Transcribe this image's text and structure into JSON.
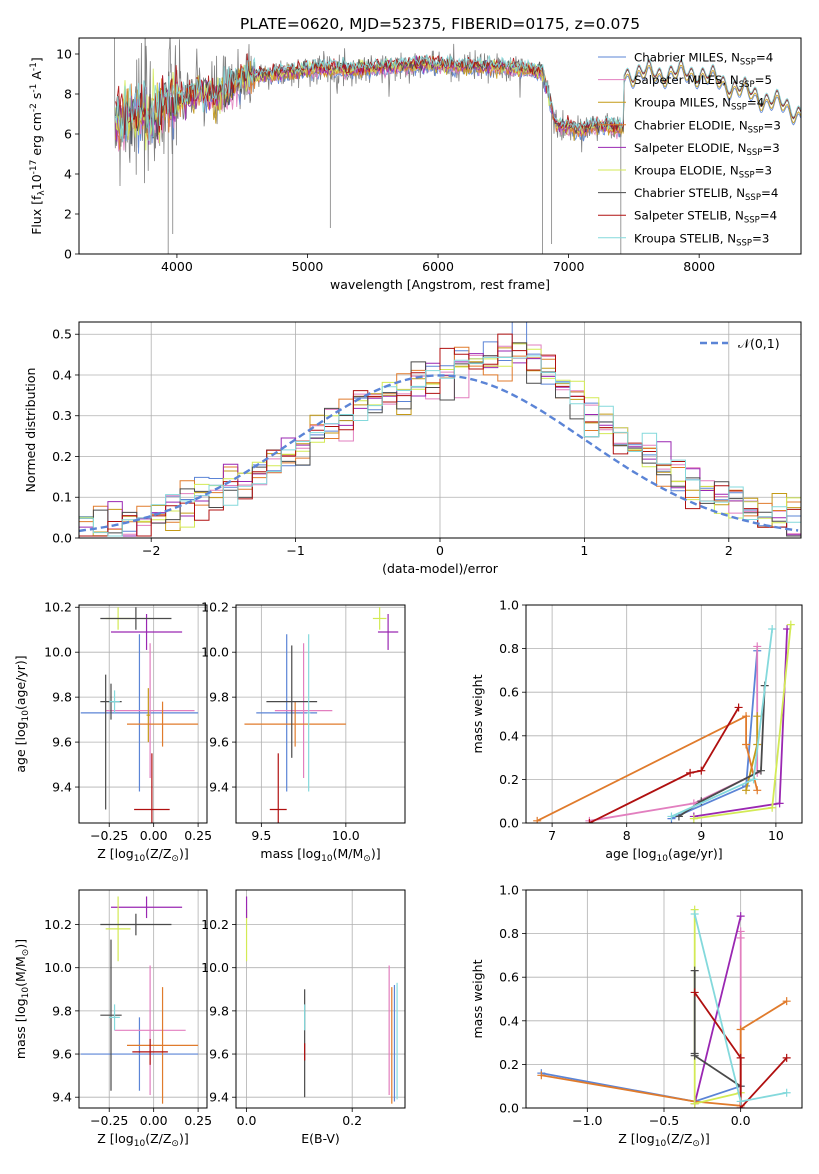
{
  "title": "PLATE=0620, MJD=52375, FIBERID=0175, z=0.075",
  "colors": {
    "Chabrier MILES": "#5b84d6",
    "Salpeter MILES": "#e27fbf",
    "Kroupa MILES": "#c49a17",
    "Chabrier ELODIE": "#e07b2c",
    "Salpeter ELODIE": "#9a27b2",
    "Kroupa ELODIE": "#d3ea55",
    "Chabrier STELIB": "#4a4a4a",
    "Salpeter STELIB": "#b01010",
    "Kroupa STELIB": "#84d9dc",
    "data": "#808080",
    "gauss": "#5b84d6"
  },
  "chart_data": [
    {
      "id": "spectrum",
      "type": "line",
      "xlabel": "wavelength [Angstrom, rest frame]",
      "ylabel": "Flux [f$_\\lambda$10$^{-17}$ erg cm$^{-2}$ s$^{-1}$ A$^{-1}$]",
      "xlim": [
        3250,
        8780
      ],
      "ylim": [
        0,
        10.8
      ],
      "xticks": [
        4000,
        5000,
        6000,
        7000,
        8000
      ],
      "yticks": [
        0,
        2,
        4,
        6,
        8,
        10
      ],
      "grid": false,
      "legend": "top-right",
      "data_range": [
        3520,
        7420
      ],
      "flux_profile": {
        "x": [
          3520,
          3600,
          3700,
          3800,
          3900,
          4000,
          4100,
          4200,
          4300,
          4400,
          4500,
          4700,
          4900,
          5100,
          5300,
          5500,
          5700,
          5900,
          6100,
          6300,
          6500,
          6700,
          6800,
          6900,
          7000,
          7100,
          7200,
          7300,
          7400
        ],
        "y": [
          6.5,
          6.8,
          7.0,
          6.7,
          7.4,
          7.7,
          8.0,
          8.1,
          7.8,
          8.3,
          8.8,
          9.0,
          9.1,
          9.3,
          9.2,
          9.3,
          9.4,
          9.5,
          9.4,
          9.4,
          9.3,
          9.2,
          9.1,
          6.5,
          6.3,
          6.2,
          6.4,
          6.4,
          6.3
        ]
      },
      "series": [
        {
          "name": "Chabrier MILES, N$_{SSP}$=4",
          "extends_to": 8780
        },
        {
          "name": "Salpeter MILES, N$_{SSP}$=5",
          "extends_to": 7420
        },
        {
          "name": "Kroupa MILES, N$_{SSP}$=4",
          "extends_to": 8780
        },
        {
          "name": "Chabrier ELODIE, N$_{SSP}$=3",
          "extends_to": 7420
        },
        {
          "name": "Salpeter ELODIE, N$_{SSP}$=3",
          "extends_to": 7420
        },
        {
          "name": "Kroupa ELODIE, N$_{SSP}$=3",
          "extends_to": 7420
        },
        {
          "name": "Chabrier STELIB, N$_{SSP}$=4",
          "extends_to": 8780
        },
        {
          "name": "Salpeter STELIB, N$_{SSP}$=4",
          "extends_to": 8780
        },
        {
          "name": "Kroupa STELIB, N$_{SSP}$=3",
          "extends_to": 8780
        }
      ]
    },
    {
      "id": "residuals",
      "type": "bar",
      "xlabel": "(data-model)/error",
      "ylabel": "Normed distribution",
      "xlim": [
        -2.5,
        2.5
      ],
      "ylim": [
        0,
        0.53
      ],
      "xticks": [
        -2,
        -1,
        0,
        1,
        2
      ],
      "yticks": [
        0.0,
        0.1,
        0.2,
        0.3,
        0.4,
        0.5
      ],
      "grid": true,
      "legend": "top-right",
      "legend_label": "$\\mathcal{N}(0,1)$",
      "bin_width": 0.1,
      "histogram": [
        0.02,
        0.03,
        0.03,
        0.04,
        0.05,
        0.06,
        0.07,
        0.08,
        0.09,
        0.11,
        0.13,
        0.14,
        0.16,
        0.18,
        0.2,
        0.22,
        0.25,
        0.28,
        0.3,
        0.32,
        0.34,
        0.35,
        0.36,
        0.37,
        0.39,
        0.41,
        0.42,
        0.43,
        0.44,
        0.45,
        0.46,
        0.44,
        0.4,
        0.37,
        0.34,
        0.31,
        0.28,
        0.25,
        0.22,
        0.2,
        0.18,
        0.16,
        0.14,
        0.12,
        0.1,
        0.09,
        0.07,
        0.06,
        0.05,
        0.04
      ]
    },
    {
      "id": "age_vs_Z",
      "type": "scatter",
      "xlabel": "Z [log$_{10}$(Z/Z$_\\odot$)]",
      "ylabel": "age  [log$_{10}$(age/yr)]",
      "xlim": [
        -0.42,
        0.3
      ],
      "ylim": [
        9.24,
        10.21
      ],
      "xticks": [
        -0.25,
        0.0,
        0.25
      ],
      "yticks": [
        9.4,
        9.6,
        9.8,
        10.0,
        10.2
      ],
      "grid": true,
      "points": [
        {
          "series": "Chabrier MILES",
          "x": -0.08,
          "y": 9.73,
          "xerr": 0.33,
          "yerr": 0.35
        },
        {
          "series": "Salpeter MILES",
          "x": -0.02,
          "y": 9.74,
          "xerr": 0.25,
          "yerr": 0.3
        },
        {
          "series": "Kroupa MILES",
          "x": -0.03,
          "y": 9.72,
          "xerr": 0.01,
          "yerr": 0.12
        },
        {
          "series": "Chabrier ELODIE",
          "x": 0.05,
          "y": 9.68,
          "xerr": 0.2,
          "yerr": 0.1
        },
        {
          "series": "Salpeter ELODIE",
          "x": -0.04,
          "y": 10.09,
          "xerr": 0.2,
          "yerr": 0.08
        },
        {
          "series": "Kroupa ELODIE",
          "x": -0.2,
          "y": 10.15,
          "xerr": 0.07,
          "yerr": 0.05
        },
        {
          "series": "Chabrier STELIB",
          "x": -0.1,
          "y": 10.15,
          "xerr": 0.2,
          "yerr": 0.05
        },
        {
          "series": "Chabrier STELIB",
          "x": -0.24,
          "y": 9.78,
          "xerr": 0.06,
          "yerr": 0.08
        },
        {
          "series": "Salpeter STELIB",
          "x": -0.01,
          "y": 9.3,
          "xerr": 0.1,
          "yerr": 0.25
        },
        {
          "series": "Kroupa STELIB",
          "x": -0.22,
          "y": 9.78,
          "xerr": 0.03,
          "yerr": 0.05
        },
        {
          "series": "Chabrier STELIB",
          "x": -0.27,
          "y": 9.6,
          "xerr": 0.0,
          "yerr": 0.3
        }
      ]
    },
    {
      "id": "age_vs_mass",
      "type": "scatter",
      "xlabel": "mass [log$_{10}$(M/M$_\\odot$)]",
      "ylabel": "",
      "xlim": [
        9.35,
        10.35
      ],
      "ylim": [
        9.24,
        10.21
      ],
      "xticks": [
        9.5,
        10.0
      ],
      "yticks": [
        9.4,
        9.6,
        9.8,
        10.0,
        10.2
      ],
      "grid": true,
      "points": [
        {
          "series": "Chabrier MILES",
          "x": 9.65,
          "y": 9.73,
          "xerr": 0.18,
          "yerr": 0.35
        },
        {
          "series": "Salpeter MILES",
          "x": 9.75,
          "y": 9.74,
          "xerr": 0.17,
          "yerr": 0.3
        },
        {
          "series": "Chabrier ELODIE",
          "x": 9.7,
          "y": 9.68,
          "xerr": 0.3,
          "yerr": 0.1
        },
        {
          "series": "Salpeter ELODIE",
          "x": 10.25,
          "y": 10.09,
          "xerr": 0.06,
          "yerr": 0.08
        },
        {
          "series": "Kroupa ELODIE",
          "x": 10.2,
          "y": 10.15,
          "xerr": 0.04,
          "yerr": 0.05
        },
        {
          "series": "Chabrier STELIB",
          "x": 9.68,
          "y": 9.78,
          "xerr": 0.15,
          "yerr": 0.25
        },
        {
          "series": "Salpeter STELIB",
          "x": 9.6,
          "y": 9.3,
          "xerr": 0.05,
          "yerr": 0.25
        },
        {
          "series": "Kroupa STELIB",
          "x": 9.78,
          "y": 9.73,
          "xerr": 0.01,
          "yerr": 0.35
        }
      ]
    },
    {
      "id": "mass_weight_vs_age",
      "type": "line",
      "xlabel": "age  [log$_{10}$(age/yr)]",
      "ylabel": "mass weight",
      "xlim": [
        6.65,
        10.35
      ],
      "ylim": [
        0,
        1.0
      ],
      "xticks": [
        7,
        8,
        9,
        10
      ],
      "yticks": [
        0.0,
        0.2,
        0.4,
        0.6,
        0.8,
        1.0
      ],
      "grid": true,
      "series": [
        {
          "name": "Chabrier MILES",
          "x": [
            8.6,
            9.6,
            9.75
          ],
          "y": [
            0.02,
            0.17,
            0.79
          ]
        },
        {
          "name": "Salpeter MILES",
          "x": [
            7.5,
            8.9,
            9.75,
            9.75
          ],
          "y": [
            0.01,
            0.09,
            0.23,
            0.81
          ]
        },
        {
          "name": "Kroupa MILES",
          "x": [
            9.6,
            9.75,
            9.75
          ],
          "y": [
            0.15,
            0.36,
            0.49
          ]
        },
        {
          "name": "Chabrier ELODIE",
          "x": [
            6.8,
            9.6,
            9.6,
            9.75
          ],
          "y": [
            0.01,
            0.49,
            0.36,
            0.15
          ]
        },
        {
          "name": "Salpeter ELODIE",
          "x": [
            8.9,
            10.05,
            10.15
          ],
          "y": [
            0.03,
            0.09,
            0.89
          ]
        },
        {
          "name": "Kroupa ELODIE",
          "x": [
            8.9,
            9.95,
            10.2
          ],
          "y": [
            0.02,
            0.07,
            0.91
          ]
        },
        {
          "name": "Chabrier STELIB",
          "x": [
            8.7,
            9.0,
            9.8,
            9.85
          ],
          "y": [
            0.03,
            0.1,
            0.24,
            0.63
          ]
        },
        {
          "name": "Salpeter STELIB",
          "x": [
            7.5,
            8.85,
            9.0,
            9.5
          ],
          "y": [
            0.0,
            0.23,
            0.24,
            0.53
          ]
        },
        {
          "name": "Kroupa STELIB",
          "x": [
            8.6,
            9.7,
            9.95
          ],
          "y": [
            0.03,
            0.2,
            0.89
          ]
        }
      ]
    },
    {
      "id": "mass_vs_Z",
      "type": "scatter",
      "xlabel": "Z [log$_{10}$(Z/Z$_\\odot$)]",
      "ylabel": "mass [log$_{10}$(M/M$_\\odot$)]",
      "xlim": [
        -0.42,
        0.3
      ],
      "ylim": [
        9.35,
        10.36
      ],
      "xticks": [
        -0.25,
        0.0,
        0.25
      ],
      "yticks": [
        9.4,
        9.6,
        9.8,
        10.0,
        10.2
      ],
      "grid": true,
      "points": [
        {
          "series": "Chabrier MILES",
          "x": -0.08,
          "y": 9.6,
          "xerr": 0.33,
          "yerr": 0.17
        },
        {
          "series": "Salpeter MILES",
          "x": -0.02,
          "y": 9.71,
          "xerr": 0.2,
          "yerr": 0.3
        },
        {
          "series": "Chabrier ELODIE",
          "x": 0.05,
          "y": 9.64,
          "xerr": 0.2,
          "yerr": 0.27
        },
        {
          "series": "Salpeter ELODIE",
          "x": -0.04,
          "y": 10.28,
          "xerr": 0.2,
          "yerr": 0.05
        },
        {
          "series": "Kroupa ELODIE",
          "x": -0.2,
          "y": 10.18,
          "xerr": 0.07,
          "yerr": 0.15
        },
        {
          "series": "Chabrier STELIB",
          "x": -0.1,
          "y": 10.2,
          "xerr": 0.2,
          "yerr": 0.05
        },
        {
          "series": "Chabrier STELIB",
          "x": -0.24,
          "y": 9.78,
          "xerr": 0.06,
          "yerr": 0.35
        },
        {
          "series": "Salpeter STELIB",
          "x": -0.02,
          "y": 9.61,
          "xerr": 0.1,
          "yerr": 0.06
        },
        {
          "series": "Kroupa STELIB",
          "x": -0.22,
          "y": 9.77,
          "xerr": 0.03,
          "yerr": 0.06
        }
      ]
    },
    {
      "id": "mass_vs_ebv",
      "type": "scatter",
      "xlabel": "E(B-V)",
      "ylabel": "",
      "xlim": [
        -0.02,
        0.3
      ],
      "ylim": [
        9.35,
        10.36
      ],
      "xticks": [
        0.0,
        0.2
      ],
      "yticks": [
        9.4,
        9.6,
        9.8,
        10.0,
        10.2
      ],
      "grid": true,
      "points": [
        {
          "series": "Kroupa ELODIE",
          "x": 0.0,
          "y": 10.15,
          "xerr": 0.0,
          "yerr": 0.12
        },
        {
          "series": "Salpeter ELODIE",
          "x": 0.0,
          "y": 10.28,
          "xerr": 0.0,
          "yerr": 0.05
        },
        {
          "series": "Chabrier STELIB",
          "x": 0.11,
          "y": 9.65,
          "xerr": 0.0,
          "yerr": 0.25
        },
        {
          "series": "Kroupa STELIB",
          "x": 0.11,
          "y": 9.77,
          "xerr": 0.0,
          "yerr": 0.06
        },
        {
          "series": "Salpeter STELIB",
          "x": 0.11,
          "y": 9.61,
          "xerr": 0.0,
          "yerr": 0.04
        },
        {
          "series": "Salpeter MILES",
          "x": 0.27,
          "y": 9.71,
          "xerr": 0.0,
          "yerr": 0.3
        },
        {
          "series": "Chabrier ELODIE",
          "x": 0.275,
          "y": 9.64,
          "xerr": 0.0,
          "yerr": 0.27
        },
        {
          "series": "Chabrier MILES",
          "x": 0.28,
          "y": 9.65,
          "xerr": 0.0,
          "yerr": 0.27
        },
        {
          "series": "Kroupa STELIB",
          "x": 0.285,
          "y": 9.66,
          "xerr": 0.0,
          "yerr": 0.27
        }
      ]
    },
    {
      "id": "mass_weight_vs_Z",
      "type": "line",
      "xlabel": "Z [log$_{10}$(Z/Z$_\\odot$)]",
      "ylabel": "mass weight",
      "xlim": [
        -1.4,
        0.4
      ],
      "ylim": [
        0,
        1.0
      ],
      "xticks": [
        -1.0,
        -0.5,
        0.0
      ],
      "yticks": [
        0.0,
        0.2,
        0.4,
        0.6,
        0.8,
        1.0
      ],
      "grid": true,
      "series": [
        {
          "name": "Chabrier MILES",
          "x": [
            -1.3,
            -0.3,
            0.0
          ],
          "y": [
            0.16,
            0.03,
            0.1
          ]
        },
        {
          "name": "Salpeter MILES",
          "x": [
            0.0,
            0.0,
            0.0
          ],
          "y": [
            0.0,
            0.78,
            0.81
          ]
        },
        {
          "name": "Chabrier ELODIE",
          "x": [
            -1.3,
            -0.3,
            0.0,
            0.0,
            0.3
          ],
          "y": [
            0.15,
            0.03,
            0.01,
            0.36,
            0.49
          ]
        },
        {
          "name": "Salpeter ELODIE",
          "x": [
            -0.3,
            0.0
          ],
          "y": [
            0.02,
            0.88
          ]
        },
        {
          "name": "Kroupa ELODIE",
          "x": [
            -0.3,
            -0.3,
            0.0
          ],
          "y": [
            0.91,
            0.02,
            0.07
          ]
        },
        {
          "name": "Chabrier STELIB",
          "x": [
            -0.3,
            -0.3,
            -0.3,
            0.0
          ],
          "y": [
            0.63,
            0.25,
            0.24,
            0.1
          ]
        },
        {
          "name": "Salpeter STELIB",
          "x": [
            -0.3,
            0.0,
            0.0,
            0.3
          ],
          "y": [
            0.53,
            0.23,
            0.0,
            0.23
          ]
        },
        {
          "name": "Kroupa STELIB",
          "x": [
            -0.3,
            0.0,
            0.3
          ],
          "y": [
            0.89,
            0.03,
            0.07
          ]
        }
      ]
    }
  ]
}
